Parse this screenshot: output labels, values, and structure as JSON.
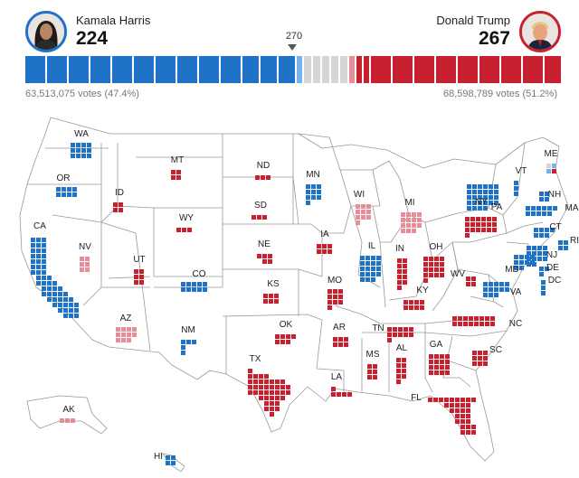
{
  "candidates": {
    "left": {
      "name": "Kamala Harris",
      "electoral_votes": "224",
      "votes_text": "63,513,075 votes (47.4%)",
      "color": "#1f73c6",
      "portrait": "candidate-portrait"
    },
    "right": {
      "name": "Donald Trump",
      "electoral_votes": "267",
      "votes_text": "68,598,789 votes (51.2%)",
      "color": "#c8202f",
      "portrait": "candidate-portrait"
    }
  },
  "threshold": "270",
  "colors": {
    "dem_solid": "#1f73c6",
    "dem_lean": "#76b3ea",
    "rep_solid": "#c8202f",
    "rep_lean": "#e78d97",
    "undecided": "#d6d6d6",
    "state_line": "#999999"
  },
  "states": [
    {
      "abbr": "WA",
      "ev": 12,
      "party": "D"
    },
    {
      "abbr": "OR",
      "ev": 8,
      "party": "D"
    },
    {
      "abbr": "CA",
      "ev": 54,
      "party": "D"
    },
    {
      "abbr": "NV",
      "ev": 6,
      "party": "Rl"
    },
    {
      "abbr": "ID",
      "ev": 4,
      "party": "R"
    },
    {
      "abbr": "MT",
      "ev": 4,
      "party": "R"
    },
    {
      "abbr": "WY",
      "ev": 3,
      "party": "R"
    },
    {
      "abbr": "UT",
      "ev": 6,
      "party": "R"
    },
    {
      "abbr": "CO",
      "ev": 10,
      "party": "D"
    },
    {
      "abbr": "AZ",
      "ev": 11,
      "party": "Rl"
    },
    {
      "abbr": "NM",
      "ev": 5,
      "party": "D"
    },
    {
      "abbr": "ND",
      "ev": 3,
      "party": "R"
    },
    {
      "abbr": "SD",
      "ev": 3,
      "party": "R"
    },
    {
      "abbr": "NE",
      "ev": 5,
      "party": "R"
    },
    {
      "abbr": "KS",
      "ev": 6,
      "party": "R"
    },
    {
      "abbr": "OK",
      "ev": 7,
      "party": "R"
    },
    {
      "abbr": "TX",
      "ev": 40,
      "party": "R"
    },
    {
      "abbr": "MN",
      "ev": 10,
      "party": "D"
    },
    {
      "abbr": "IA",
      "ev": 6,
      "party": "R"
    },
    {
      "abbr": "MO",
      "ev": 10,
      "party": "R"
    },
    {
      "abbr": "AR",
      "ev": 6,
      "party": "R"
    },
    {
      "abbr": "LA",
      "ev": 8,
      "party": "R"
    },
    {
      "abbr": "WI",
      "ev": 10,
      "party": "Rl"
    },
    {
      "abbr": "IL",
      "ev": 19,
      "party": "D"
    },
    {
      "abbr": "MI",
      "ev": 15,
      "party": "Rl"
    },
    {
      "abbr": "IN",
      "ev": 11,
      "party": "R"
    },
    {
      "abbr": "OH",
      "ev": 17,
      "party": "R"
    },
    {
      "abbr": "KY",
      "ev": 8,
      "party": "R"
    },
    {
      "abbr": "TN",
      "ev": 11,
      "party": "R"
    },
    {
      "abbr": "MS",
      "ev": 6,
      "party": "R"
    },
    {
      "abbr": "AL",
      "ev": 9,
      "party": "R"
    },
    {
      "abbr": "GA",
      "ev": 16,
      "party": "R"
    },
    {
      "abbr": "FL",
      "ev": 30,
      "party": "R"
    },
    {
      "abbr": "SC",
      "ev": 9,
      "party": "R"
    },
    {
      "abbr": "NC",
      "ev": 16,
      "party": "R"
    },
    {
      "abbr": "VA",
      "ev": 13,
      "party": "D"
    },
    {
      "abbr": "WV",
      "ev": 4,
      "party": "R"
    },
    {
      "abbr": "PA",
      "ev": 19,
      "party": "R"
    },
    {
      "abbr": "NY",
      "ev": 28,
      "party": "D"
    },
    {
      "abbr": "VT",
      "ev": 3,
      "party": "D"
    },
    {
      "abbr": "NH",
      "ev": 4,
      "party": "D"
    },
    {
      "abbr": "ME",
      "ev": 4,
      "party": "split"
    },
    {
      "abbr": "MA",
      "ev": 11,
      "party": "D"
    },
    {
      "abbr": "RI",
      "ev": 4,
      "party": "D"
    },
    {
      "abbr": "CT",
      "ev": 7,
      "party": "D"
    },
    {
      "abbr": "NJ",
      "ev": 14,
      "party": "D"
    },
    {
      "abbr": "DE",
      "ev": 3,
      "party": "D"
    },
    {
      "abbr": "MD",
      "ev": 10,
      "party": "D"
    },
    {
      "abbr": "DC",
      "ev": 3,
      "party": "D"
    },
    {
      "abbr": "AK",
      "ev": 3,
      "party": "Rl"
    },
    {
      "abbr": "HI",
      "ev": 4,
      "party": "D"
    }
  ]
}
